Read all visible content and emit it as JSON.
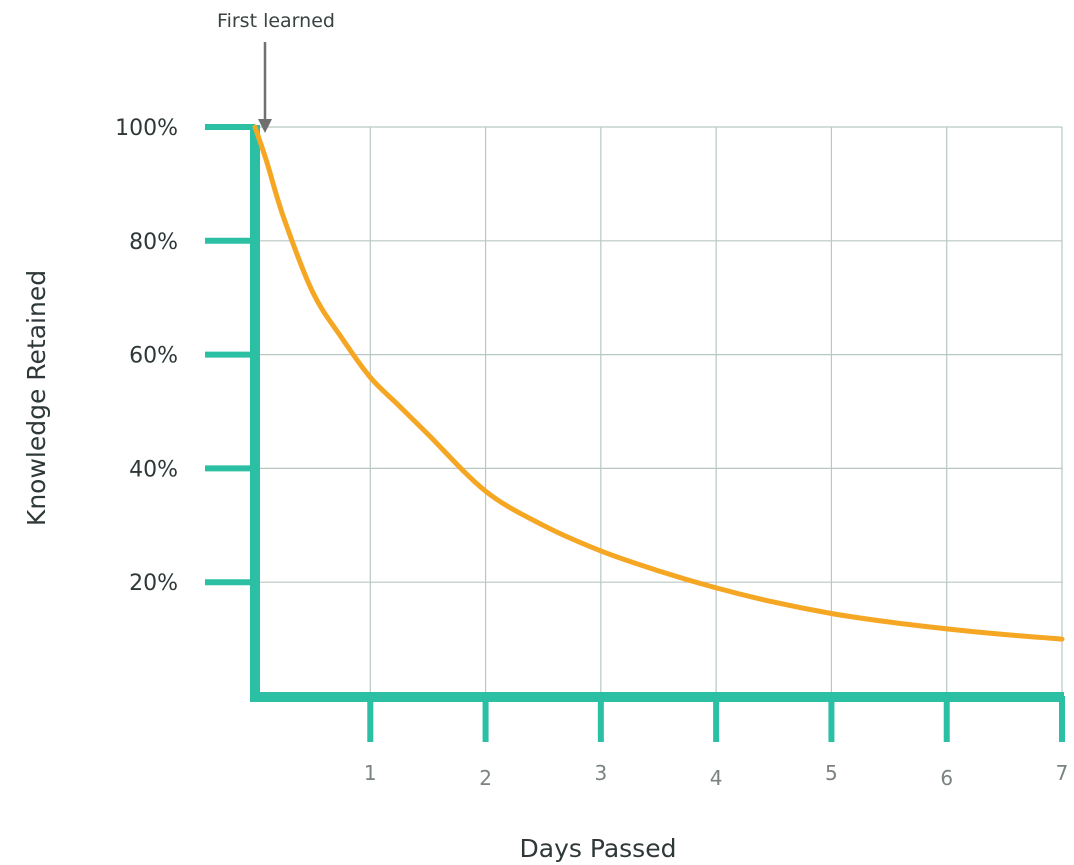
{
  "chart_data": {
    "type": "line",
    "xlabel": "Days Passed",
    "ylabel": "Knowledge Retained",
    "xlim": [
      0,
      7
    ],
    "ylim": [
      0,
      100
    ],
    "x_ticks": [
      1,
      2,
      3,
      4,
      5,
      6,
      7
    ],
    "y_ticks": [
      20,
      40,
      60,
      80,
      100
    ],
    "x_tick_labels": [
      "1",
      "2",
      "3",
      "4",
      "5",
      "6",
      "7"
    ],
    "y_tick_labels": [
      "20%",
      "40%",
      "60%",
      "80%",
      "100%"
    ],
    "grid": true,
    "series": [
      {
        "color": "#f5a623",
        "x": [
          0,
          0.1,
          0.25,
          0.5,
          0.75,
          1,
          1.25,
          1.5,
          2,
          2.5,
          3,
          3.5,
          4,
          4.5,
          5,
          5.5,
          6,
          6.5,
          7
        ],
        "y": [
          100,
          94,
          84,
          71,
          63,
          56,
          51,
          46,
          36,
          30,
          25.5,
          22,
          19,
          16.5,
          14.5,
          13,
          11.8,
          10.8,
          10
        ]
      }
    ],
    "annotations": [
      {
        "text": "First learned",
        "x": 0,
        "y": 100
      }
    ],
    "colors": {
      "axis": "#2bbfa4",
      "grid": "#b8c7c4",
      "curve": "#f5a623",
      "arrow": "#707070"
    }
  }
}
